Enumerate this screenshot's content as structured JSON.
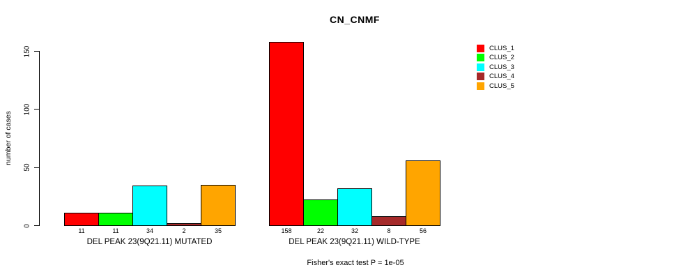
{
  "chart_data": {
    "type": "bar",
    "title": "CN_CNMF",
    "xlabel": "",
    "ylabel": "number of cases",
    "ylim": [
      0,
      150
    ],
    "yticks": [
      0,
      50,
      100,
      150
    ],
    "grid": false,
    "legend_position": "right",
    "groups": [
      {
        "label": "DEL PEAK 23(9Q21.11) MUTATED",
        "values": [
          11,
          11,
          34,
          2,
          35
        ],
        "value_labels": [
          "11",
          "11",
          "34",
          "2",
          "35"
        ]
      },
      {
        "label": "DEL PEAK 23(9Q21.11) WILD-TYPE",
        "values": [
          158,
          22,
          32,
          8,
          56
        ],
        "value_labels": [
          "158",
          "22",
          "32",
          "8",
          "56"
        ]
      }
    ],
    "series": [
      {
        "name": "CLUS_1",
        "color": "#FF0000"
      },
      {
        "name": "CLUS_2",
        "color": "#00FF00"
      },
      {
        "name": "CLUS_3",
        "color": "#00FFFF"
      },
      {
        "name": "CLUS_4",
        "color": "#A52A2A"
      },
      {
        "name": "CLUS_5",
        "color": "#FFA500"
      }
    ],
    "annotation": "Fisher's exact test P = 1e-05"
  }
}
